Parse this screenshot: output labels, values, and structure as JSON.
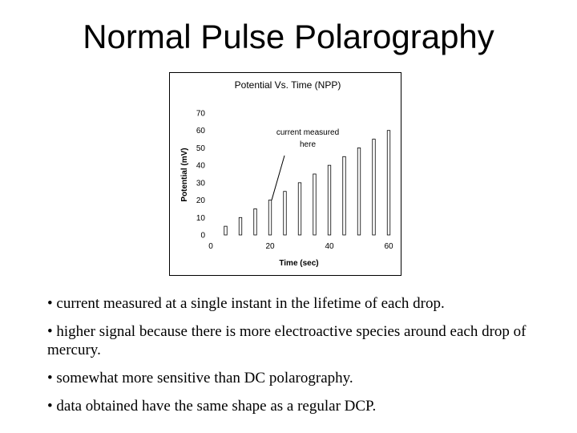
{
  "slide": {
    "title": "Normal Pulse Polarography"
  },
  "bullets": [
    "• current measured at a single instant in the lifetime of each drop.",
    "• higher signal because there is more electroactive species around each drop of mercury.",
    "• somewhat more sensitive than DC polarography.",
    "• data obtained have the same shape as a regular DCP."
  ],
  "chart_data": {
    "type": "bar",
    "title": "Potential Vs. Time (NPP)",
    "xlabel": "Time (sec)",
    "ylabel": "Potential (mV)",
    "x": [
      5,
      10,
      15,
      20,
      25,
      30,
      35,
      40,
      45,
      50,
      55,
      60
    ],
    "values": [
      5,
      10,
      15,
      20,
      25,
      30,
      35,
      40,
      45,
      50,
      55,
      60
    ],
    "xlim": [
      0,
      60
    ],
    "ylim": [
      0,
      70
    ],
    "xticks": [
      0,
      20,
      40,
      60
    ],
    "yticks": [
      0,
      10,
      20,
      30,
      40,
      50,
      60,
      70
    ],
    "grid": false,
    "bar_color": "#ffffff",
    "annotation": {
      "text_line1": "current measured",
      "text_line2": "here",
      "x": 20,
      "y": 20
    }
  }
}
